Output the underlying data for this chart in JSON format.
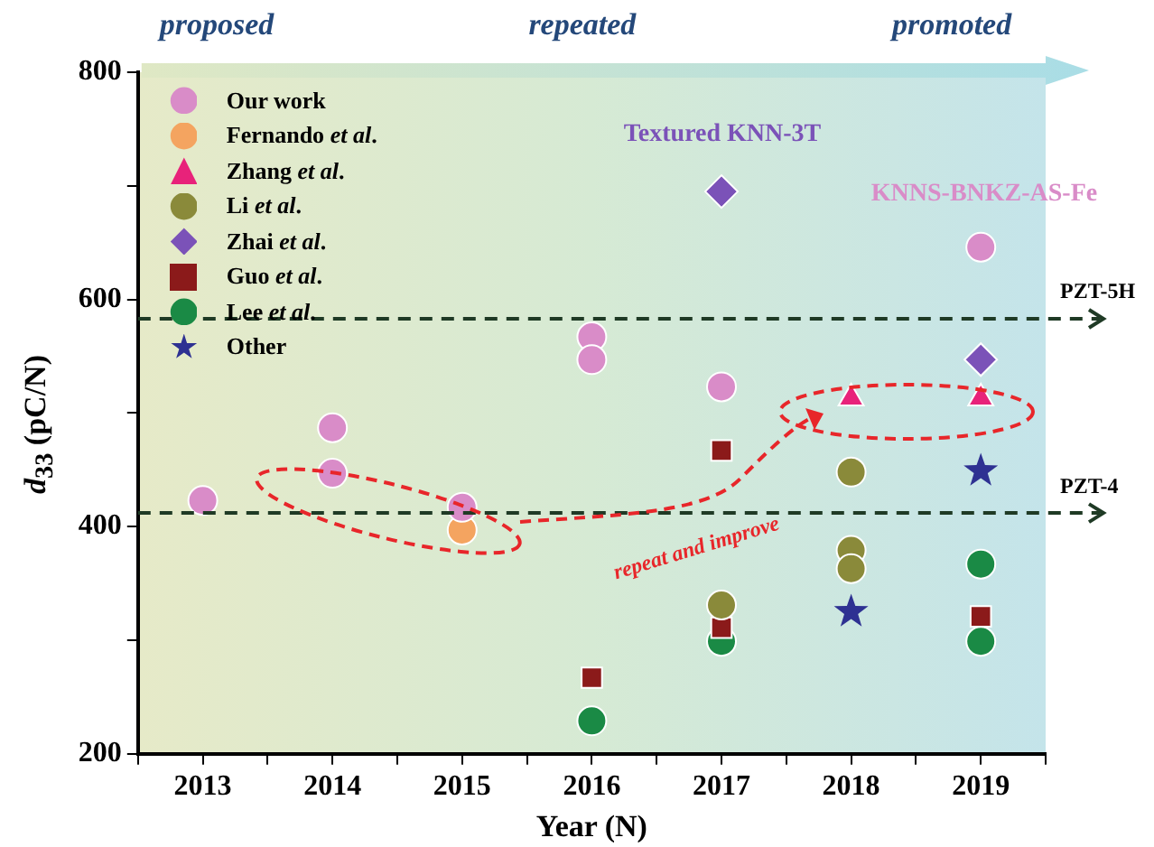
{
  "chart_data": {
    "type": "scatter",
    "xlabel": "Year (N)",
    "ylabel": "d$_{33}$ (pC/N)",
    "xlim": [
      2012.5,
      2019.5
    ],
    "xticks": [
      {
        "value": 2012.5,
        "label": null
      },
      2013,
      {
        "value": 2013.5,
        "label": null
      },
      2014,
      {
        "value": 2014.5,
        "label": null
      },
      2015,
      {
        "value": 2015.5,
        "label": null
      },
      2016,
      {
        "value": 2016.5,
        "label": null
      },
      2017,
      {
        "value": 2017.5,
        "label": null
      },
      2018,
      {
        "value": 2018.5,
        "label": null
      },
      2019,
      {
        "value": 2019.5,
        "label": null
      }
    ],
    "ylim": [
      200,
      800
    ],
    "yticks": [
      200,
      {
        "value": 300,
        "label": null
      },
      400,
      {
        "value": 500,
        "label": null
      },
      600,
      {
        "value": 700,
        "label": null
      },
      800
    ],
    "grid": false,
    "legend": "top left",
    "series": [
      {
        "name": "Our work",
        "color": "#d98cc8",
        "marker": "circle",
        "x": [
          2013,
          2014,
          2014,
          2015,
          2016,
          2016,
          2017,
          2019
        ],
        "values": [
          423,
          487,
          447,
          417,
          567,
          547,
          523,
          646
        ]
      },
      {
        "name": "Fernando et al.",
        "color": "#f4a460",
        "marker": "circle",
        "x": [
          2015
        ],
        "values": [
          397
        ]
      },
      {
        "name": "Zhang et al.",
        "color": "#e8227a",
        "marker": "triangle",
        "x": [
          2018,
          2019
        ],
        "values": [
          513,
          513
        ]
      },
      {
        "name": "Li et al.",
        "color": "#8a8a3a",
        "x": [
          2017,
          2018,
          2018,
          2018
        ],
        "values": [
          331,
          448,
          379,
          363
        ]
      },
      {
        "name": "Zhai et al.",
        "color": "#7b52b8",
        "marker": "diamond",
        "x": [
          2017,
          2019
        ],
        "values": [
          695,
          547
        ]
      },
      {
        "name": "Guo et al.",
        "color": "#8b1a1a",
        "marker": "square",
        "x": [
          2016,
          2017,
          2017,
          2019
        ],
        "values": [
          267,
          467,
          311,
          321
        ]
      },
      {
        "name": "Lee et al.",
        "color": "#1a8a45",
        "x": [
          2016,
          2017,
          2019,
          2019
        ],
        "values": [
          229,
          299,
          367,
          299
        ]
      },
      {
        "name": "Other",
        "color": "#2e3192",
        "marker": "star",
        "x": [
          2018,
          2019
        ],
        "values": [
          325,
          449
        ]
      }
    ],
    "ref_lines": [
      {
        "axis": "y",
        "value": 583,
        "label": "PZT-5H",
        "color": "#1f3a25",
        "line_style": "dashed"
      },
      {
        "axis": "y",
        "value": 412,
        "label": "PZT-4",
        "color": "#1f3a25",
        "line_style": "dashed"
      }
    ],
    "annotations": [
      "proposed",
      "repeated",
      "promoted",
      "Textured KNN-3T",
      "KNNS-BNKZ-AS-Fe",
      "repeat and improve"
    ]
  }
}
